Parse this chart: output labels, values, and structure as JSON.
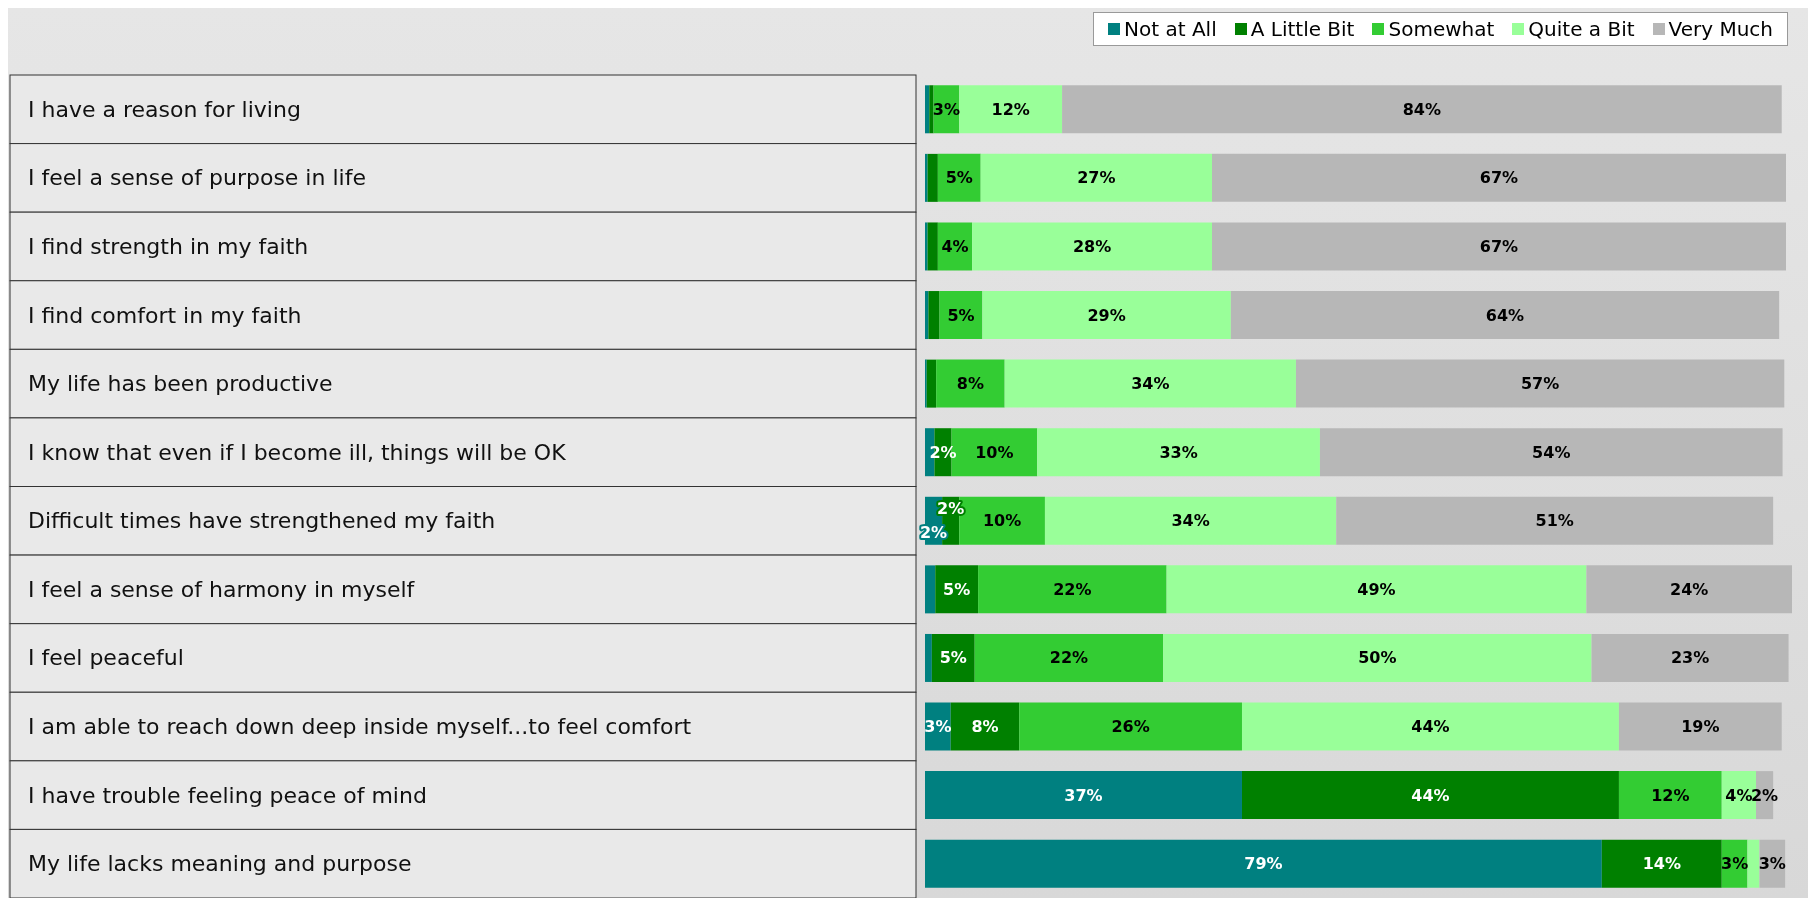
{
  "chart_data": {
    "type": "bar",
    "orientation": "horizontal",
    "stacked": true,
    "legend": "top right",
    "categories": [
      "I have a reason for living",
      "I feel a sense of purpose in life",
      "I find strength in my faith",
      "I find comfort in my faith",
      "My life has been productive",
      "I know that even if I become ill, things will be OK",
      "Difficult times have strengthened my faith",
      "I feel a sense of harmony in myself",
      "I feel peaceful",
      "I am able to reach down deep inside myself...to feel comfort",
      "I have trouble feeling peace of mind",
      "My life lacks meaning and purpose"
    ],
    "series": [
      {
        "name": "Not at All",
        "color": "#008080",
        "values": [
          0.5,
          0.3,
          0.3,
          0.4,
          0.2,
          1.1,
          2,
          1.2,
          0.8,
          3,
          37,
          79
        ],
        "value_labels": [
          null,
          null,
          null,
          null,
          null,
          null,
          "2%",
          null,
          null,
          "3%",
          "37%",
          "79%"
        ]
      },
      {
        "name": "A Little Bit",
        "color": "#008000",
        "values": [
          0.5,
          1.2,
          1.2,
          1.3,
          1.1,
          2,
          2,
          5,
          5,
          8,
          44,
          14
        ],
        "value_labels": [
          null,
          null,
          null,
          null,
          null,
          "2%",
          "2%",
          "5%",
          "5%",
          "8%",
          "44%",
          "14%"
        ]
      },
      {
        "name": "Somewhat",
        "color": "#33cc33",
        "values": [
          3,
          5,
          4,
          5,
          8,
          10,
          10,
          22,
          22,
          26,
          12,
          3
        ],
        "value_labels": [
          "3%",
          "5%",
          "4%",
          "5%",
          "8%",
          "10%",
          "10%",
          "22%",
          "22%",
          "26%",
          "12%",
          "3%"
        ]
      },
      {
        "name": "Quite a Bit",
        "color": "#99ff99",
        "values": [
          12,
          27,
          28,
          29,
          34,
          33,
          34,
          49,
          50,
          44,
          4,
          1.4
        ],
        "value_labels": [
          "12%",
          "27%",
          "28%",
          "29%",
          "34%",
          "33%",
          "34%",
          "49%",
          "50%",
          "44%",
          "4%",
          null
        ]
      },
      {
        "name": "Very Much",
        "color": "#b7b7b7",
        "values": [
          84,
          67,
          67,
          64,
          57,
          54,
          51,
          24,
          23,
          19,
          2,
          3
        ],
        "value_labels": [
          "84%",
          "67%",
          "67%",
          "64%",
          "57%",
          "54%",
          "51%",
          "24%",
          "23%",
          "19%",
          "2%",
          "3%"
        ]
      }
    ]
  }
}
